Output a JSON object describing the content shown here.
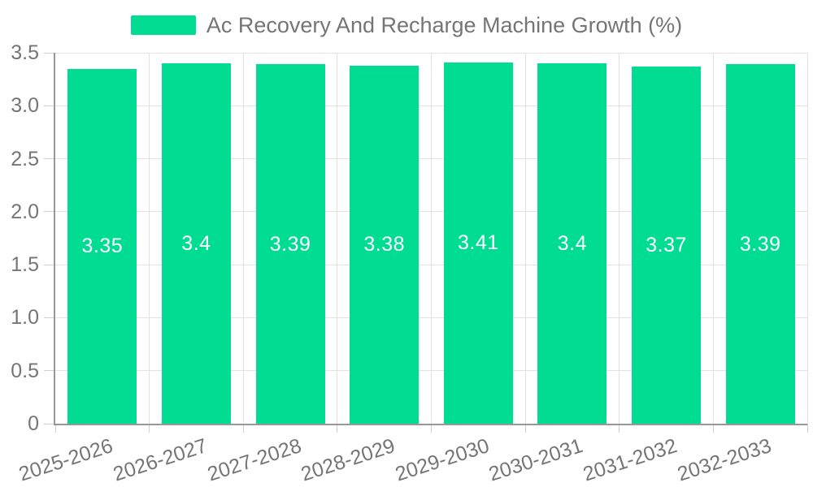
{
  "legend": {
    "series_label": "Ac Recovery And Recharge Machine Growth (%)"
  },
  "chart_data": {
    "type": "bar",
    "title": "Ac Recovery And Recharge Machine Growth (%)",
    "categories": [
      "2025-2026",
      "2026-2027",
      "2027-2028",
      "2028-2029",
      "2029-2030",
      "2030-2031",
      "2031-2032",
      "2032-2033"
    ],
    "values": [
      3.35,
      3.4,
      3.39,
      3.38,
      3.41,
      3.4,
      3.37,
      3.39
    ],
    "value_labels": [
      "3.35",
      "3.4",
      "3.39",
      "3.38",
      "3.41",
      "3.4",
      "3.37",
      "3.39"
    ],
    "xlabel": "",
    "ylabel": "",
    "ylim": [
      0,
      3.5
    ],
    "yticks": [
      0,
      0.5,
      1,
      1.5,
      2,
      2.5,
      3,
      3.5
    ],
    "ytick_labels": [
      "0",
      "0.5",
      "1.0",
      "1.5",
      "2.0",
      "2.5",
      "3.0",
      "3.5"
    ],
    "grid": true,
    "legend_position": "top-center",
    "colors": {
      "bar": "#00DC92",
      "value_label": "#FFFFFF",
      "axis_text": "#757575",
      "legend_text": "#757575",
      "axis_line": "#989898",
      "grid_line": "#E2E2E2",
      "tick_line": "#CFCFCF",
      "background": "#FFFFFF"
    }
  }
}
